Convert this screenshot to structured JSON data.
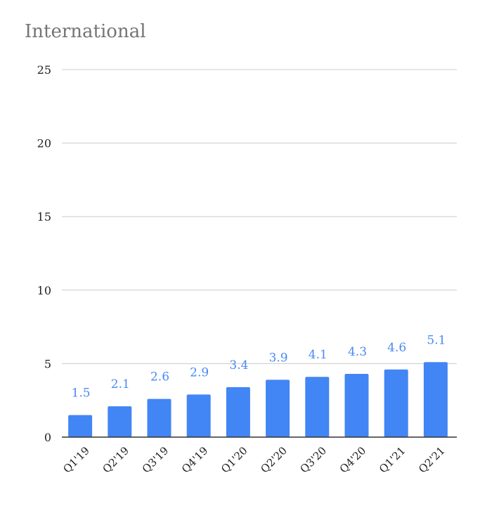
{
  "chart_data": {
    "type": "bar",
    "title": "International",
    "categories": [
      "Q1'19",
      "Q2'19",
      "Q3'19",
      "Q4'19",
      "Q1'20",
      "Q2'20",
      "Q3'20",
      "Q4'20",
      "Q1'21",
      "Q2'21"
    ],
    "values": [
      1.5,
      2.1,
      2.6,
      2.9,
      3.4,
      3.9,
      4.1,
      4.3,
      4.6,
      5.1
    ],
    "data_labels": [
      "1.5",
      "2.1",
      "2.6",
      "2.9",
      "3.4",
      "3.9",
      "4.1",
      "4.3",
      "4.6",
      "5.1"
    ],
    "yticks": [
      0,
      5,
      10,
      15,
      20,
      25
    ],
    "ylim": [
      0,
      25
    ],
    "xlabel": "",
    "ylabel": "",
    "grid": true,
    "legend": "none",
    "colors": {
      "bar": "#4285f4",
      "data_label": "#4a8af4",
      "title": "#757575",
      "gridline": "#cccccc"
    }
  }
}
